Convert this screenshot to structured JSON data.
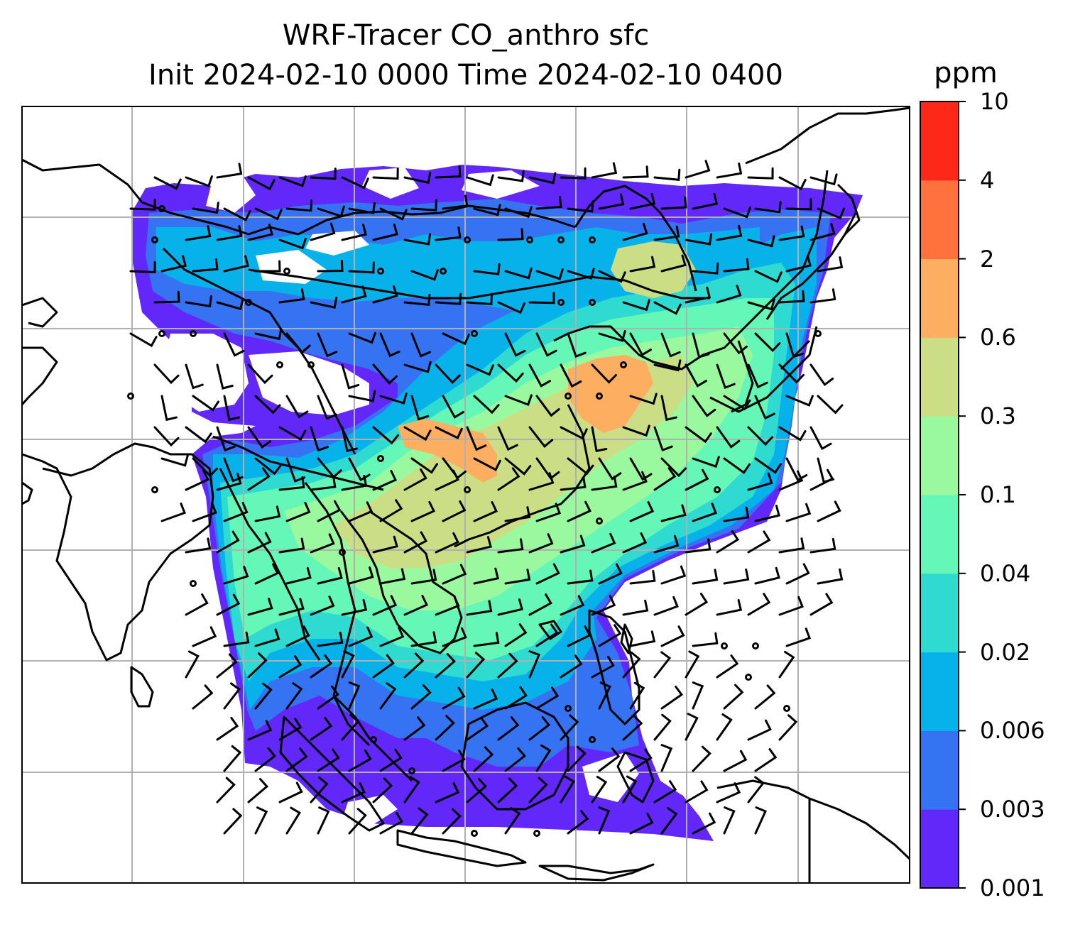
{
  "title": {
    "line1": "WRF-Tracer CO_anthro sfc",
    "line2": "Init 2024-02-10 0000 Time 2024-02-10 0400"
  },
  "colorbar": {
    "unit": "ppm",
    "levels": [
      "0.001",
      "0.003",
      "0.006",
      "0.02",
      "0.04",
      "0.1",
      "0.3",
      "0.6",
      "2",
      "4",
      "10"
    ],
    "colors": [
      "#6228fa",
      "#3573f3",
      "#07b1ea",
      "#2fdad1",
      "#64f7b7",
      "#9af99f",
      "#cbde86",
      "#feae60",
      "#ff723e",
      "#ff2818"
    ]
  },
  "map": {
    "coastline_color": "#000000",
    "gridline_color": "#b0b0b0",
    "wind_barb_color": "#000000"
  }
}
